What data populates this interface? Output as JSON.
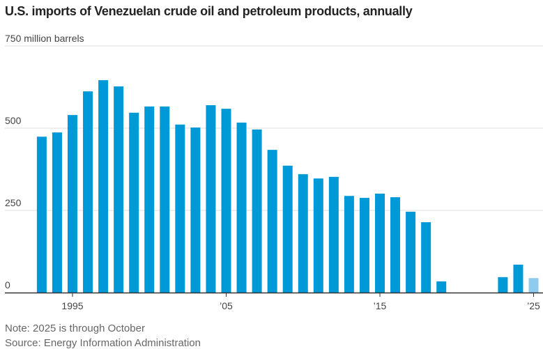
{
  "chart_data": {
    "type": "bar",
    "title": "U.S. imports of Venezuelan crude oil and petroleum products, annually",
    "ylabel": "",
    "y_unit_label": "750 million barrels",
    "ylim": [
      0,
      750
    ],
    "y_ticks": [
      0,
      250,
      500,
      750
    ],
    "y_tick_labels": [
      "0",
      "250",
      "500",
      "750 million barrels"
    ],
    "x_ticks": [
      1995,
      2005,
      2015,
      2025
    ],
    "x_tick_labels": [
      "1995",
      "’05",
      "’15",
      "’25"
    ],
    "grid": true,
    "colors": {
      "bar": "#0099d8",
      "partial": "#8ecbef",
      "grid": "#dddddd",
      "axis": "#333333"
    },
    "x": [
      1993,
      1994,
      1995,
      1996,
      1997,
      1998,
      1999,
      2000,
      2001,
      2002,
      2003,
      2004,
      2005,
      2006,
      2007,
      2008,
      2009,
      2010,
      2011,
      2012,
      2013,
      2014,
      2015,
      2016,
      2017,
      2018,
      2019,
      2023,
      2024,
      2025
    ],
    "values": [
      474,
      487,
      540,
      612,
      646,
      627,
      547,
      566,
      566,
      511,
      502,
      570,
      559,
      517,
      496,
      434,
      386,
      360,
      347,
      352,
      294,
      288,
      301,
      290,
      246,
      214,
      34,
      47,
      85,
      44
    ],
    "partial_years": [
      2025
    ],
    "note": "Note: 2025 is through October",
    "source": "Source: Energy Information Administration"
  }
}
